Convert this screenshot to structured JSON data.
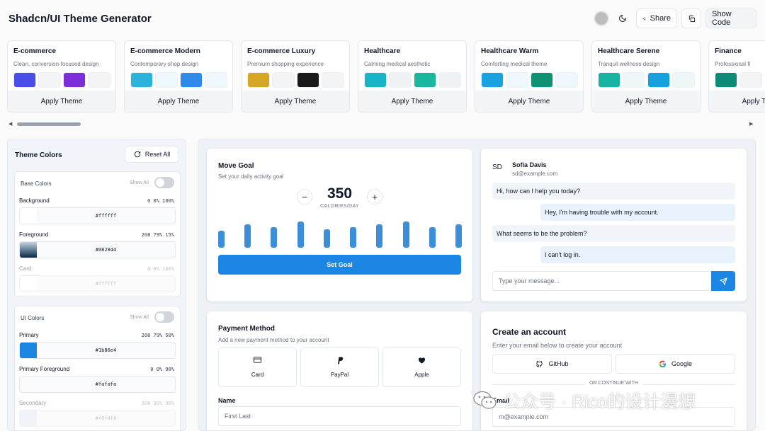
{
  "header": {
    "title": "Shadcn/UI Theme Generator",
    "share_label": "Share",
    "show_code_label": "Show Code"
  },
  "themes": [
    {
      "name": "E-commerce",
      "description": "Clean, conversion-focused design",
      "swatches": [
        "#4a4ee8",
        "#f3f4f6",
        "#7c2fd8",
        "#f3f4f6"
      ],
      "apply_label": "Apply Theme"
    },
    {
      "name": "E-commerce Modern",
      "description": "Contemporary shop design",
      "swatches": [
        "#2bb3d9",
        "#eef7fb",
        "#2e8bea",
        "#eef7fb"
      ],
      "apply_label": "Apply Theme"
    },
    {
      "name": "E-commerce Luxury",
      "description": "Premium shopping experience",
      "swatches": [
        "#d6a521",
        "#f3f4f6",
        "#1a1a1a",
        "#f3f4f6"
      ],
      "apply_label": "Apply Theme"
    },
    {
      "name": "Healthcare",
      "description": "Calming medical aesthetic",
      "swatches": [
        "#19b3c7",
        "#eef2f4",
        "#19b89e",
        "#eef2f4"
      ],
      "apply_label": "Apply Theme"
    },
    {
      "name": "Healthcare Warm",
      "description": "Comforting medical theme",
      "swatches": [
        "#1aa1e0",
        "#eef7fb",
        "#0f9173",
        "#eef7fb"
      ],
      "apply_label": "Apply Theme"
    },
    {
      "name": "Healthcare Serene",
      "description": "Tranquil wellness design",
      "swatches": [
        "#18b3a0",
        "#eef7f8",
        "#13a0dd",
        "#eef7f8"
      ],
      "apply_label": "Apply Theme"
    },
    {
      "name": "Finance",
      "description": "Professional fi",
      "swatches": [
        "#0e8a76",
        "#f3f4f6"
      ],
      "apply_label": "Apply Theme"
    }
  ],
  "sidebar": {
    "title": "Theme Colors",
    "reset_label": "Reset All",
    "groups": [
      {
        "title": "Base Colors",
        "show_all": "Show All",
        "fields": [
          {
            "label": "Background",
            "hsl": "0 0% 100%",
            "hex": "#ffffff",
            "color": "#ffffff"
          },
          {
            "label": "Foreground",
            "hsl": "208 79% 15%",
            "hex": "#082844",
            "color": "#082844"
          },
          {
            "label": "Card",
            "hsl": "0 0% 100%",
            "hex": "#ffffff",
            "color": "#ffffff"
          }
        ]
      },
      {
        "title": "UI Colors",
        "show_all": "Show All",
        "fields": [
          {
            "label": "Primary",
            "hsl": "208 79% 50%",
            "hex": "#1b86e4",
            "color": "#1b86e4"
          },
          {
            "label": "Primary Foreground",
            "hsl": "0 0% 98%",
            "hex": "#fafafa",
            "color": "#fafafa"
          },
          {
            "label": "Secondary",
            "hsl": "208 30% 96%",
            "hex": "#f0f4f8",
            "color": "#f0f4f8"
          }
        ]
      }
    ]
  },
  "move_goal": {
    "title": "Move Goal",
    "subtitle": "Set your daily activity goal",
    "value": "350",
    "unit": "CALORIES/DAY",
    "minus": "−",
    "plus": "+",
    "button": "Set Goal",
    "bars": [
      0.55,
      0.75,
      0.65,
      0.85,
      0.58,
      0.65,
      0.75,
      0.85,
      0.65,
      0.75
    ]
  },
  "chat": {
    "initials": "SD",
    "name": "Sofia Davis",
    "email": "sd@example.com",
    "messages": [
      {
        "from": "them",
        "text": "Hi, how can I help you today?"
      },
      {
        "from": "me",
        "text": "Hey, I'm having trouble with my account."
      },
      {
        "from": "them",
        "text": "What seems to be the problem?"
      },
      {
        "from": "me",
        "text": "I can't log in."
      }
    ],
    "placeholder": "Type your message..."
  },
  "payment": {
    "title": "Payment Method",
    "subtitle": "Add a new payment method to your account",
    "options": [
      {
        "label": "Card",
        "icon": "credit-card-icon"
      },
      {
        "label": "PayPal",
        "icon": "paypal-icon"
      },
      {
        "label": "Apple",
        "icon": "apple-icon"
      }
    ],
    "name_label": "Name",
    "name_placeholder": "First Last"
  },
  "create_account": {
    "title": "Create an account",
    "subtitle": "Enter your email below to create your account",
    "github": "GitHub",
    "google": "Google",
    "divider": "OR CONTINUE WITH",
    "email_label": "Email",
    "email_placeholder": "m@example.com"
  },
  "watermark": "公众号 · Rico的设计漫想",
  "colors": {
    "primary": "#1b86e4",
    "bar": "#3b8ed9"
  }
}
